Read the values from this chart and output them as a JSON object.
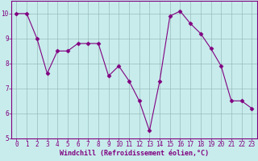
{
  "x": [
    0,
    1,
    2,
    3,
    4,
    5,
    6,
    7,
    8,
    9,
    10,
    11,
    12,
    13,
    14,
    15,
    16,
    17,
    18,
    19,
    20,
    21,
    22,
    23
  ],
  "y": [
    10.0,
    10.0,
    9.0,
    7.6,
    8.5,
    8.5,
    8.8,
    8.8,
    8.8,
    7.5,
    7.9,
    7.3,
    6.5,
    5.3,
    7.3,
    9.9,
    10.1,
    9.6,
    9.2,
    8.6,
    7.9,
    6.5,
    6.5,
    6.2
  ],
  "line_color": "#800080",
  "marker": "D",
  "marker_size": 2.5,
  "bg_color": "#c8ecec",
  "grid_color": "#9ababa",
  "xlabel": "Windchill (Refroidissement éolien,°C)",
  "xlabel_color": "#800080",
  "tick_color": "#800080",
  "label_color": "#800080",
  "spine_color": "#800080",
  "bottom_bar_color": "#800080",
  "ylim": [
    5,
    10.5
  ],
  "xlim": [
    -0.5,
    23.5
  ],
  "yticks": [
    5,
    6,
    7,
    8,
    9,
    10
  ],
  "xticks": [
    0,
    1,
    2,
    3,
    4,
    5,
    6,
    7,
    8,
    9,
    10,
    11,
    12,
    13,
    14,
    15,
    16,
    17,
    18,
    19,
    20,
    21,
    22,
    23
  ],
  "tick_fontsize": 5.5,
  "xlabel_fontsize": 6,
  "ylabel_fontsize": 6
}
